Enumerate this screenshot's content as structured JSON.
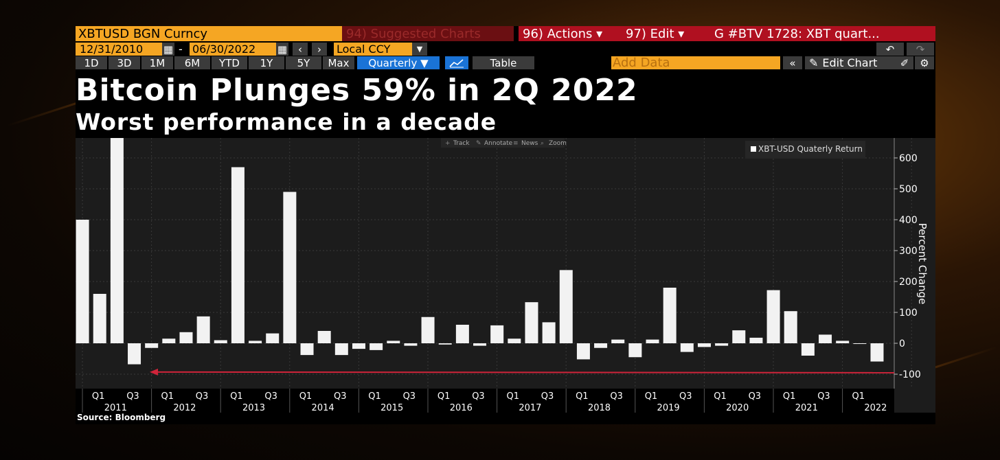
{
  "toolbar": {
    "ticker": "XBTUSD BGN Curncy",
    "suggested": "94) Suggested Charts",
    "actions": "96) Actions ▾",
    "edit": "97) Edit ▾",
    "chart_id": "G #BTV 1728: XBT quart...",
    "start_date": "12/31/2010",
    "date_sep": "-",
    "end_date": "06/30/2022",
    "currency": "Local CCY",
    "periods": [
      "1D",
      "3D",
      "1M",
      "6M",
      "YTD",
      "1Y",
      "5Y",
      "Max"
    ],
    "frequency": "Quarterly ▼",
    "table_label": "Table",
    "add_data_placeholder": "Add Data",
    "edit_chart_label": "Edit Chart"
  },
  "chart_tools": [
    "Track",
    "Annotate",
    "News",
    "Zoom"
  ],
  "source": "Source: Bloomberg",
  "colors": {
    "accent": "#f5a623",
    "bar": "#f2f2f2",
    "arrow": "#d0243a",
    "background": "#1c1c1c"
  },
  "chart_data": {
    "type": "bar",
    "title": "Bitcoin Plunges 59% in 2Q 2022",
    "subtitle": "Worst performance in a decade",
    "ylabel": "Percent Change",
    "ylim": [
      -150,
      660
    ],
    "yticks": [
      600,
      500,
      400,
      300,
      200,
      100,
      0,
      -100
    ],
    "grid": true,
    "legend_position": "top-right",
    "years": [
      "2011",
      "2012",
      "2013",
      "2014",
      "2015",
      "2016",
      "2017",
      "2018",
      "2019",
      "2020",
      "2021",
      "2022"
    ],
    "quarter_labels": [
      "Q1",
      "Q3"
    ],
    "series": [
      {
        "name": "XBT-USD Quaterly Return",
        "values": [
          400,
          160,
          665,
          -68,
          -15,
          15,
          36,
          87,
          10,
          570,
          8,
          32,
          490,
          -38,
          40,
          -38,
          -18,
          -22,
          8,
          -8,
          85,
          -4,
          60,
          -8,
          58,
          15,
          133,
          68,
          237,
          -52,
          -15,
          12,
          -45,
          12,
          180,
          -28,
          -12,
          -8,
          42,
          18,
          172,
          104,
          -40,
          28,
          8,
          -2,
          -59
        ]
      }
    ],
    "annotation_arrow_y": -93
  }
}
